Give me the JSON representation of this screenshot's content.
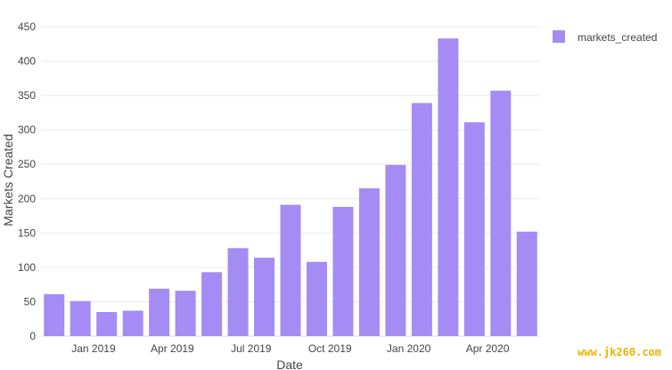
{
  "chart_data": {
    "type": "bar",
    "xlabel": "Date",
    "ylabel": "Markets Created",
    "ylim": [
      0,
      450
    ],
    "yticks": [
      0,
      50,
      100,
      150,
      200,
      250,
      300,
      350,
      400,
      450
    ],
    "xticks": [
      "Jan 2019",
      "Apr 2019",
      "Jul 2019",
      "Oct 2019",
      "Jan 2020",
      "Apr 2020"
    ],
    "x": [
      "2018-11",
      "2018-12",
      "2019-01",
      "2019-02",
      "2019-03",
      "2019-04",
      "2019-05",
      "2019-06",
      "2019-07",
      "2019-08",
      "2019-09",
      "2019-10",
      "2019-11",
      "2019-12",
      "2020-01",
      "2020-02",
      "2020-03",
      "2020-04",
      "2020-05"
    ],
    "series": [
      {
        "name": "markets_created",
        "color": "#a48cf4",
        "values": [
          61,
          51,
          35,
          37,
          69,
          66,
          93,
          128,
          114,
          191,
          108,
          188,
          215,
          249,
          339,
          433,
          311,
          357,
          152
        ]
      }
    ],
    "grid": true,
    "legend": "top-right"
  },
  "watermark": "www.jk260.com",
  "colors": {
    "grid": "#ebebeb",
    "axis": "#444444"
  }
}
